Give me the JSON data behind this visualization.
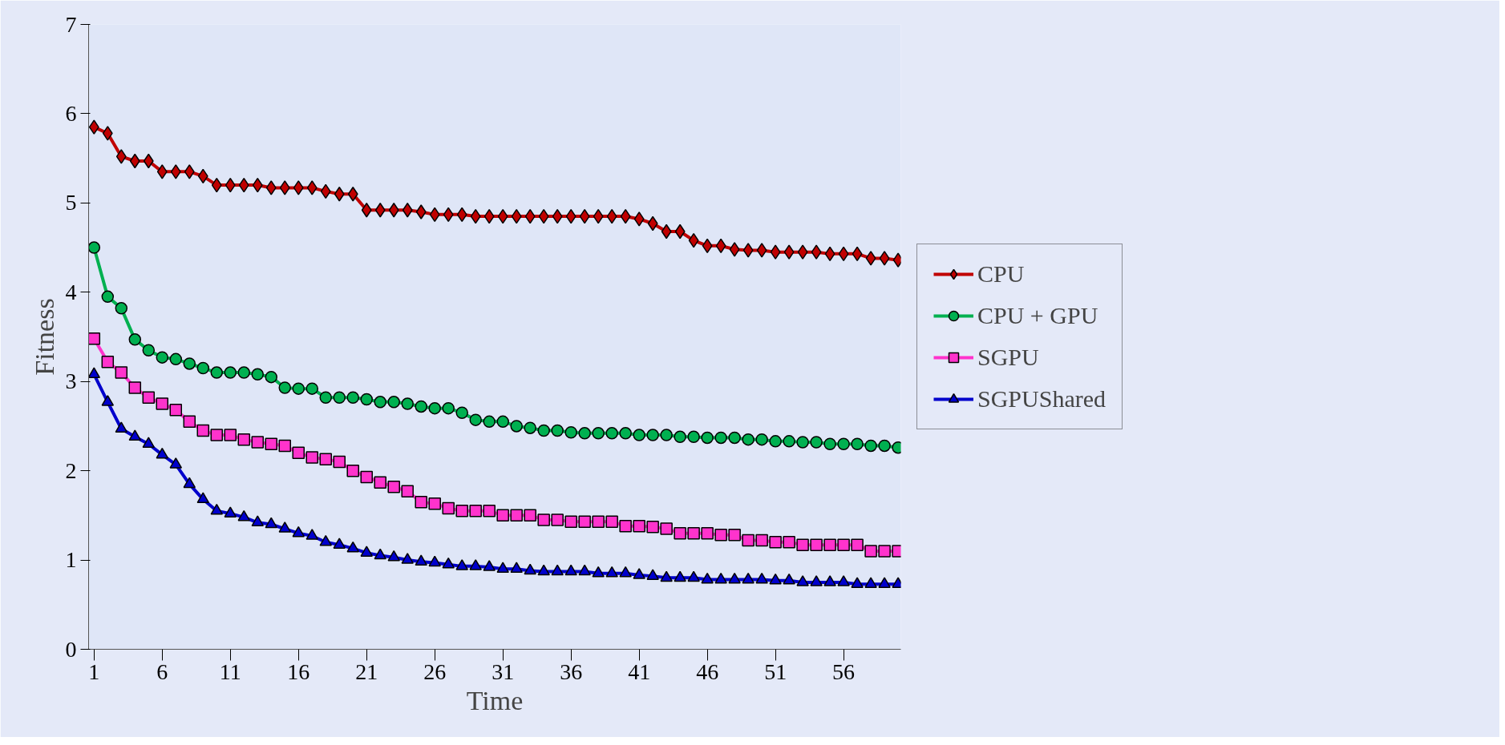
{
  "chart_data": {
    "type": "line",
    "xlabel": "Time",
    "ylabel": "Fitness",
    "x": [
      1,
      2,
      3,
      4,
      5,
      6,
      7,
      8,
      9,
      10,
      11,
      12,
      13,
      14,
      15,
      16,
      17,
      18,
      19,
      20,
      21,
      22,
      23,
      24,
      25,
      26,
      27,
      28,
      29,
      30,
      31,
      32,
      33,
      34,
      35,
      36,
      37,
      38,
      39,
      40,
      41,
      42,
      43,
      44,
      45,
      46,
      47,
      48,
      49,
      50,
      51,
      52,
      53,
      54,
      55,
      56,
      57,
      58,
      59,
      60
    ],
    "xlim": [
      0.6,
      60.2
    ],
    "xticks": [
      1,
      6,
      11,
      16,
      21,
      26,
      31,
      36,
      41,
      46,
      51,
      56
    ],
    "ylim": [
      0,
      7
    ],
    "yticks": [
      0,
      1,
      2,
      3,
      4,
      5,
      6,
      7
    ],
    "grid": false,
    "legend": "right",
    "series": [
      {
        "name": "CPU",
        "color": "#c00000",
        "marker": "diamond",
        "values": [
          5.85,
          5.78,
          5.52,
          5.47,
          5.47,
          5.35,
          5.35,
          5.35,
          5.3,
          5.2,
          5.2,
          5.2,
          5.2,
          5.17,
          5.17,
          5.17,
          5.17,
          5.13,
          5.1,
          5.1,
          4.92,
          4.92,
          4.92,
          4.92,
          4.9,
          4.87,
          4.87,
          4.87,
          4.85,
          4.85,
          4.85,
          4.85,
          4.85,
          4.85,
          4.85,
          4.85,
          4.85,
          4.85,
          4.85,
          4.85,
          4.82,
          4.77,
          4.68,
          4.68,
          4.58,
          4.52,
          4.52,
          4.48,
          4.47,
          4.47,
          4.45,
          4.45,
          4.45,
          4.45,
          4.43,
          4.43,
          4.43,
          4.38,
          4.38,
          4.36
        ]
      },
      {
        "name": "CPU + GPU",
        "color": "#00b050",
        "marker": "circle",
        "values": [
          4.5,
          3.95,
          3.82,
          3.47,
          3.35,
          3.27,
          3.25,
          3.2,
          3.15,
          3.1,
          3.1,
          3.1,
          3.08,
          3.05,
          2.93,
          2.92,
          2.92,
          2.82,
          2.82,
          2.82,
          2.8,
          2.77,
          2.77,
          2.75,
          2.72,
          2.7,
          2.7,
          2.65,
          2.57,
          2.55,
          2.55,
          2.5,
          2.48,
          2.45,
          2.45,
          2.43,
          2.42,
          2.42,
          2.42,
          2.42,
          2.4,
          2.4,
          2.4,
          2.38,
          2.38,
          2.37,
          2.37,
          2.37,
          2.35,
          2.35,
          2.33,
          2.33,
          2.32,
          2.32,
          2.3,
          2.3,
          2.3,
          2.28,
          2.28,
          2.26
        ]
      },
      {
        "name": "SGPU",
        "color": "#ff33cc",
        "marker": "square",
        "values": [
          3.48,
          3.22,
          3.1,
          2.93,
          2.82,
          2.75,
          2.68,
          2.55,
          2.45,
          2.4,
          2.4,
          2.35,
          2.32,
          2.3,
          2.28,
          2.2,
          2.15,
          2.13,
          2.1,
          2.0,
          1.93,
          1.87,
          1.82,
          1.77,
          1.65,
          1.63,
          1.58,
          1.55,
          1.55,
          1.55,
          1.5,
          1.5,
          1.5,
          1.45,
          1.45,
          1.43,
          1.43,
          1.43,
          1.43,
          1.38,
          1.38,
          1.37,
          1.35,
          1.3,
          1.3,
          1.3,
          1.28,
          1.28,
          1.22,
          1.22,
          1.2,
          1.2,
          1.17,
          1.17,
          1.17,
          1.17,
          1.17,
          1.1,
          1.1,
          1.1
        ]
      },
      {
        "name": "SGPUShared",
        "color": "#0000cc",
        "marker": "triangle",
        "values": [
          3.08,
          2.77,
          2.47,
          2.38,
          2.3,
          2.18,
          2.07,
          1.85,
          1.68,
          1.55,
          1.52,
          1.48,
          1.42,
          1.4,
          1.35,
          1.3,
          1.27,
          1.2,
          1.17,
          1.13,
          1.08,
          1.05,
          1.03,
          1.0,
          0.98,
          0.97,
          0.95,
          0.93,
          0.93,
          0.92,
          0.9,
          0.9,
          0.88,
          0.87,
          0.87,
          0.87,
          0.87,
          0.85,
          0.85,
          0.85,
          0.83,
          0.82,
          0.8,
          0.8,
          0.8,
          0.78,
          0.78,
          0.78,
          0.78,
          0.78,
          0.77,
          0.77,
          0.75,
          0.75,
          0.75,
          0.75,
          0.73,
          0.73,
          0.73,
          0.73
        ]
      }
    ]
  }
}
